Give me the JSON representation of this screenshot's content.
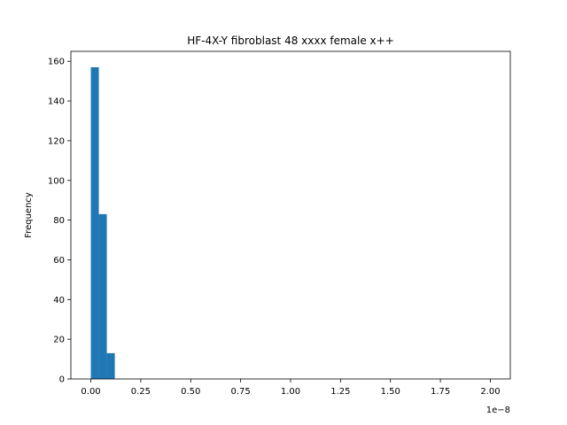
{
  "chart_data": {
    "type": "histogram",
    "title": "HF-4X-Y fibroblast 48 xxxx female x++",
    "xlabel": "",
    "ylabel": "Frequency",
    "x_offset_text": "1e−8",
    "xlim": [
      -0.1,
      2.1
    ],
    "ylim": [
      0,
      165
    ],
    "grid": false,
    "bar_color": "#1f77b4",
    "bins": [
      {
        "x0": 0.0,
        "x1": 0.04,
        "count": 157
      },
      {
        "x0": 0.04,
        "x1": 0.08,
        "count": 83
      },
      {
        "x0": 0.08,
        "x1": 0.12,
        "count": 13
      }
    ],
    "x_ticks": [
      {
        "value": 0.0,
        "label": "0.00"
      },
      {
        "value": 0.25,
        "label": "0.25"
      },
      {
        "value": 0.5,
        "label": "0.50"
      },
      {
        "value": 0.75,
        "label": "0.75"
      },
      {
        "value": 1.0,
        "label": "1.00"
      },
      {
        "value": 1.25,
        "label": "1.25"
      },
      {
        "value": 1.5,
        "label": "1.50"
      },
      {
        "value": 1.75,
        "label": "1.75"
      },
      {
        "value": 2.0,
        "label": "2.00"
      }
    ],
    "y_ticks": [
      {
        "value": 0,
        "label": "0"
      },
      {
        "value": 20,
        "label": "20"
      },
      {
        "value": 40,
        "label": "40"
      },
      {
        "value": 60,
        "label": "60"
      },
      {
        "value": 80,
        "label": "80"
      },
      {
        "value": 100,
        "label": "100"
      },
      {
        "value": 120,
        "label": "120"
      },
      {
        "value": 140,
        "label": "140"
      },
      {
        "value": 160,
        "label": "160"
      }
    ]
  }
}
